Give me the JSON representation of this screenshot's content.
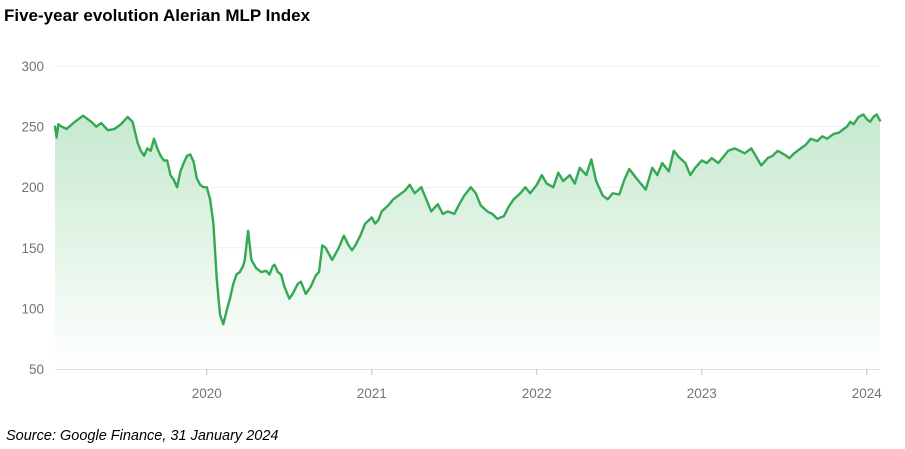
{
  "chart_data": {
    "type": "area",
    "title": "Five-year evolution Alerian MLP Index",
    "source": "Source: Google Finance, 31 January 2024",
    "xlabel": "",
    "ylabel": "",
    "x_ticks": [
      "2020",
      "2021",
      "2022",
      "2023",
      "2024"
    ],
    "y_ticks": [
      "300",
      "250",
      "200",
      "150",
      "100",
      "50"
    ],
    "ylim": [
      50,
      300
    ],
    "xlim": [
      2019.08,
      2024.08
    ],
    "grid": true,
    "legend": "none",
    "line_color": "#34a853",
    "fill_color_top": "#c6e9cf",
    "fill_color_bottom": "#ffffff",
    "series": [
      {
        "x": [
          2019.08,
          2019.09,
          2019.1,
          2019.12,
          2019.15,
          2019.2,
          2019.25,
          2019.3,
          2019.33,
          2019.36,
          2019.4,
          2019.44,
          2019.48,
          2019.52,
          2019.55,
          2019.58,
          2019.6,
          2019.62,
          2019.64,
          2019.66,
          2019.68,
          2019.7,
          2019.72,
          2019.74,
          2019.76,
          2019.78,
          2019.8,
          2019.82,
          2019.84,
          2019.86,
          2019.88,
          2019.9,
          2019.92,
          2019.94,
          2019.96,
          2019.98,
          2020.0,
          2020.02,
          2020.04,
          2020.06,
          2020.08,
          2020.1,
          2020.12,
          2020.14,
          2020.16,
          2020.18,
          2020.2,
          2020.22,
          2020.23,
          2020.25,
          2020.27,
          2020.3,
          2020.33,
          2020.36,
          2020.38,
          2020.4,
          2020.41,
          2020.43,
          2020.45,
          2020.47,
          2020.5,
          2020.52,
          2020.55,
          2020.57,
          2020.6,
          2020.63,
          2020.66,
          2020.68,
          2020.7,
          2020.72,
          2020.74,
          2020.76,
          2020.8,
          2020.83,
          2020.86,
          2020.88,
          2020.9,
          2020.93,
          2020.96,
          2021.0,
          2021.02,
          2021.04,
          2021.06,
          2021.1,
          2021.13,
          2021.16,
          2021.2,
          2021.23,
          2021.26,
          2021.3,
          2021.33,
          2021.36,
          2021.4,
          2021.43,
          2021.46,
          2021.5,
          2021.53,
          2021.56,
          2021.6,
          2021.63,
          2021.66,
          2021.7,
          2021.73,
          2021.76,
          2021.8,
          2021.83,
          2021.86,
          2021.9,
          2021.93,
          2021.96,
          2022.0,
          2022.03,
          2022.06,
          2022.1,
          2022.13,
          2022.16,
          2022.2,
          2022.23,
          2022.26,
          2022.3,
          2022.33,
          2022.36,
          2022.4,
          2022.43,
          2022.46,
          2022.5,
          2022.53,
          2022.56,
          2022.6,
          2022.63,
          2022.66,
          2022.7,
          2022.73,
          2022.76,
          2022.8,
          2022.83,
          2022.86,
          2022.9,
          2022.93,
          2022.96,
          2023.0,
          2023.03,
          2023.06,
          2023.1,
          2023.13,
          2023.16,
          2023.2,
          2023.23,
          2023.26,
          2023.3,
          2023.33,
          2023.36,
          2023.4,
          2023.43,
          2023.46,
          2023.5,
          2023.53,
          2023.56,
          2023.6,
          2023.63,
          2023.66,
          2023.7,
          2023.73,
          2023.76,
          2023.8,
          2023.83,
          2023.86,
          2023.88,
          2023.9,
          2023.92,
          2023.95,
          2023.98,
          2024.0,
          2024.02,
          2024.04,
          2024.06,
          2024.08
        ],
        "y": [
          250,
          241,
          252,
          250,
          248,
          254,
          259,
          254,
          250,
          253,
          247,
          248,
          252,
          258,
          254,
          237,
          230,
          226,
          232,
          230,
          240,
          232,
          226,
          222,
          222,
          210,
          206,
          200,
          213,
          220,
          226,
          227,
          221,
          207,
          202,
          200,
          200,
          190,
          170,
          125,
          95,
          87,
          98,
          108,
          120,
          128,
          130,
          135,
          140,
          164,
          140,
          133,
          130,
          131,
          128,
          135,
          136,
          130,
          128,
          118,
          108,
          112,
          120,
          122,
          112,
          118,
          127,
          130,
          152,
          150,
          145,
          140,
          150,
          160,
          152,
          148,
          152,
          160,
          170,
          175,
          170,
          173,
          180,
          185,
          190,
          193,
          197,
          202,
          195,
          200,
          190,
          180,
          186,
          178,
          180,
          178,
          186,
          193,
          200,
          195,
          185,
          180,
          178,
          174,
          176,
          184,
          190,
          195,
          200,
          195,
          202,
          210,
          203,
          200,
          212,
          205,
          210,
          203,
          216,
          210,
          223,
          205,
          193,
          190,
          195,
          194,
          206,
          215,
          208,
          203,
          198,
          216,
          210,
          220,
          213,
          230,
          225,
          220,
          210,
          216,
          222,
          220,
          224,
          220,
          225,
          230,
          232,
          230,
          228,
          232,
          225,
          218,
          224,
          226,
          230,
          227,
          224,
          228,
          232,
          235,
          240,
          238,
          242,
          240,
          244,
          245,
          248,
          250,
          254,
          252,
          258,
          260,
          256,
          254,
          258,
          260,
          255
        ]
      }
    ]
  }
}
